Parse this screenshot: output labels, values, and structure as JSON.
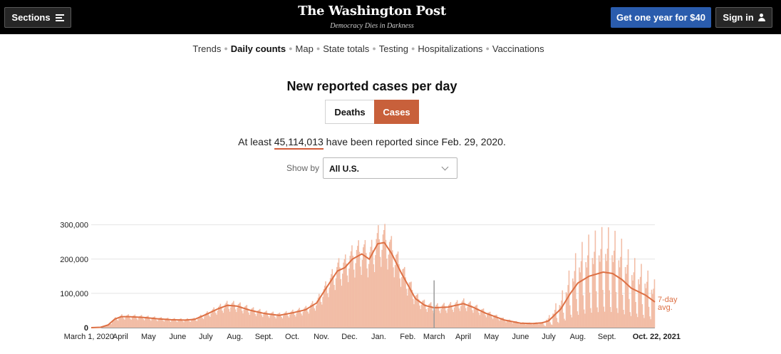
{
  "header": {
    "sections_label": "Sections",
    "logo_text": "The Washington Post",
    "tagline": "Democracy Dies in Darkness",
    "subscribe_label": "Get one year for $40",
    "signin_label": "Sign in"
  },
  "nav": {
    "items": [
      {
        "label": "Trends",
        "active": false
      },
      {
        "label": "Daily counts",
        "active": true
      },
      {
        "label": "Map",
        "active": false
      },
      {
        "label": "State totals",
        "active": false
      },
      {
        "label": "Testing",
        "active": false
      },
      {
        "label": "Hospitalizations",
        "active": false
      },
      {
        "label": "Vaccinations",
        "active": false
      }
    ]
  },
  "page": {
    "title": "New reported cases per day",
    "toggle": {
      "deaths_label": "Deaths",
      "cases_label": "Cases",
      "selected": "Cases"
    },
    "summary_prefix": "At least",
    "summary_total": "45,114,013",
    "summary_suffix": "have been reported since Feb. 29, 2020.",
    "show_by_label": "Show by",
    "show_by_value": "All U.S."
  },
  "colors": {
    "bar": "#f2bda6",
    "line": "#dd7044",
    "accent": "#c8603b",
    "subscribe": "#2a5cad",
    "marker": "#9a9a9a"
  },
  "chart_data": {
    "type": "bar",
    "title": "New reported cases per day",
    "y_ticks": [
      0,
      100000,
      200000,
      300000
    ],
    "y_tick_labels": [
      "0",
      "100,000",
      "200,000",
      "300,000"
    ],
    "ylim": [
      0,
      320000
    ],
    "x_range_days": [
      0,
      600
    ],
    "x_tick_labels": [
      {
        "label": "March 1, 2020",
        "day": 0
      },
      {
        "label": "April",
        "day": 31
      },
      {
        "label": "May",
        "day": 61
      },
      {
        "label": "June",
        "day": 92
      },
      {
        "label": "July",
        "day": 122
      },
      {
        "label": "Aug.",
        "day": 153
      },
      {
        "label": "Sept.",
        "day": 184
      },
      {
        "label": "Oct.",
        "day": 214
      },
      {
        "label": "Nov.",
        "day": 245
      },
      {
        "label": "Dec.",
        "day": 275
      },
      {
        "label": "Jan.",
        "day": 306
      },
      {
        "label": "Feb.",
        "day": 337
      },
      {
        "label": "March",
        "day": 365
      },
      {
        "label": "April",
        "day": 396
      },
      {
        "label": "May",
        "day": 426
      },
      {
        "label": "June",
        "day": 457
      },
      {
        "label": "July",
        "day": 487
      },
      {
        "label": "Aug.",
        "day": 518
      },
      {
        "label": "Sept.",
        "day": 549
      },
      {
        "label": "Oct. 22, 2021",
        "day": 600
      }
    ],
    "marker_day": 365,
    "line_label": "7-day avg.",
    "series": [
      {
        "name": "7-day average new reported cases",
        "points": [
          [
            0,
            0
          ],
          [
            10,
            1000
          ],
          [
            18,
            8000
          ],
          [
            25,
            25000
          ],
          [
            32,
            32000
          ],
          [
            40,
            32000
          ],
          [
            55,
            30000
          ],
          [
            70,
            26000
          ],
          [
            85,
            23000
          ],
          [
            100,
            22000
          ],
          [
            110,
            24000
          ],
          [
            122,
            38000
          ],
          [
            135,
            55000
          ],
          [
            145,
            65000
          ],
          [
            155,
            63000
          ],
          [
            170,
            50000
          ],
          [
            185,
            41000
          ],
          [
            200,
            36000
          ],
          [
            214,
            43000
          ],
          [
            228,
            52000
          ],
          [
            240,
            72000
          ],
          [
            250,
            115000
          ],
          [
            262,
            165000
          ],
          [
            270,
            175000
          ],
          [
            278,
            200000
          ],
          [
            288,
            215000
          ],
          [
            296,
            200000
          ],
          [
            305,
            245000
          ],
          [
            312,
            248000
          ],
          [
            320,
            215000
          ],
          [
            330,
            160000
          ],
          [
            337,
            125000
          ],
          [
            345,
            85000
          ],
          [
            355,
            65000
          ],
          [
            365,
            58000
          ],
          [
            380,
            60000
          ],
          [
            396,
            70000
          ],
          [
            406,
            60000
          ],
          [
            420,
            42000
          ],
          [
            440,
            22000
          ],
          [
            457,
            13000
          ],
          [
            470,
            12000
          ],
          [
            480,
            14000
          ],
          [
            487,
            20000
          ],
          [
            500,
            55000
          ],
          [
            510,
            100000
          ],
          [
            518,
            130000
          ],
          [
            530,
            150000
          ],
          [
            545,
            162000
          ],
          [
            555,
            158000
          ],
          [
            565,
            140000
          ],
          [
            575,
            115000
          ],
          [
            590,
            95000
          ],
          [
            600,
            75000
          ]
        ]
      }
    ]
  }
}
